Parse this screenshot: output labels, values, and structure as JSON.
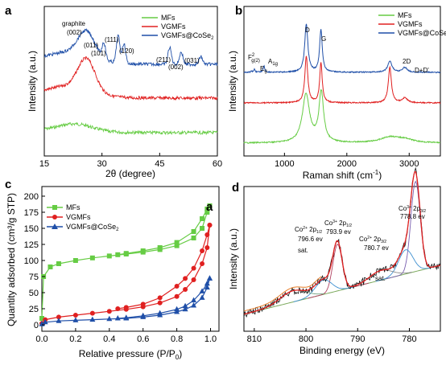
{
  "panels": {
    "a": {
      "label": "a",
      "xlabel": "2θ (degree)",
      "ylabel": "Intensity (a.u.)"
    },
    "b": {
      "label": "b",
      "xlabel": "Raman shift (cm",
      "xlabel_sup": "-1",
      "xlabel_end": ")",
      "ylabel": "Intensity (a.u.)"
    },
    "c": {
      "label": "c",
      "inner_label": "a",
      "xlabel": "Relative pressure (P/P",
      "xlabel_sub": "0",
      "xlabel_end": ")",
      "ylabel": "Quantity adsorbed (cm³/g STP)"
    },
    "d": {
      "label": "d",
      "xlabel": "Binding energy (eV)",
      "ylabel": "Intensity (a.u.)"
    }
  },
  "colors": {
    "MFs": "#66cc44",
    "VGMFs": "#e02020",
    "VGMFs@CoSe2": "#1f4fa8",
    "fit1": "#8a8a8a",
    "fit2": "#e87e2a"
  },
  "chart_data": [
    {
      "id": "a",
      "type": "line",
      "xlabel": "2θ (degree)",
      "ylabel": "Intensity (a.u.)",
      "xlim": [
        15,
        60
      ],
      "xticks": [
        15,
        30,
        45,
        60
      ],
      "legend": [
        "MFs",
        "VGMFs",
        "VGMFs@CoSe2"
      ],
      "legend_position": "top-right",
      "series": [
        {
          "name": "MFs",
          "peaks": [
            {
              "x": 23,
              "height": 0.45
            }
          ]
        },
        {
          "name": "VGMFs",
          "peaks": [
            {
              "x": 26,
              "height": 1.0
            }
          ]
        },
        {
          "name": "VGMFs@CoSe2",
          "peaks": [
            {
              "x": 26,
              "height": 0.8
            },
            {
              "x": 30.5,
              "height": 0.5
            },
            {
              "x": 34.2,
              "height": 0.9
            },
            {
              "x": 35.7,
              "height": 0.65
            },
            {
              "x": 47.6,
              "height": 0.55
            },
            {
              "x": 50.6,
              "height": 0.4
            },
            {
              "x": 55.7,
              "height": 0.25
            }
          ]
        }
      ],
      "annotations": [
        "graphite",
        "(002)",
        "(011)",
        "(101)",
        "(111)",
        "(120)",
        "(211)",
        "(002)",
        "(031)"
      ]
    },
    {
      "id": "b",
      "type": "line",
      "xlabel": "Raman shift (cm-1)",
      "ylabel": "Intensity (a.u.)",
      "xlim": [
        350,
        3500
      ],
      "xticks": [
        1000,
        2000,
        3000
      ],
      "legend": [
        "MFs",
        "VGMFs",
        "VGMFs@CoSe2"
      ],
      "legend_position": "top-right",
      "series": [
        {
          "name": "MFs",
          "peaks": [
            {
              "x": 1350,
              "label": "D"
            },
            {
              "x": 1585,
              "label": "G"
            },
            {
              "x": 2690,
              "label": "2D"
            }
          ]
        },
        {
          "name": "VGMFs",
          "peaks": [
            {
              "x": 1350
            },
            {
              "x": 1585
            },
            {
              "x": 2690
            },
            {
              "x": 2930
            }
          ]
        },
        {
          "name": "VGMFs@CoSe2",
          "peaks": [
            {
              "x": 520
            },
            {
              "x": 670
            },
            {
              "x": 1350
            },
            {
              "x": 1585
            },
            {
              "x": 2690
            },
            {
              "x": 2930
            }
          ]
        }
      ],
      "annotations": [
        "F²g(2)",
        "Eg",
        "A1g",
        "D",
        "G",
        "2D",
        "D+D'"
      ]
    },
    {
      "id": "c",
      "type": "line",
      "xlabel": "Relative pressure (P/P0)",
      "ylabel": "Quantity adsorbed (cm³/g STP)",
      "xlim": [
        0,
        1.05
      ],
      "ylim": [
        -10,
        215
      ],
      "xticks": [
        0.0,
        0.2,
        0.4,
        0.6,
        0.8,
        1.0
      ],
      "yticks": [
        0,
        25,
        50,
        75,
        100,
        125,
        150,
        175,
        200
      ],
      "legend": [
        "MFs",
        "VGMFs",
        "VGMFs@CoSe2"
      ],
      "legend_position": "top-left",
      "series": [
        {
          "name": "MFs",
          "adsorption": [
            [
              0.0,
              10
            ],
            [
              0.01,
              75
            ],
            [
              0.05,
              90
            ],
            [
              0.1,
              95
            ],
            [
              0.2,
              100
            ],
            [
              0.3,
              104
            ],
            [
              0.4,
              107
            ],
            [
              0.5,
              110
            ],
            [
              0.6,
              113
            ],
            [
              0.7,
              117
            ],
            [
              0.8,
              123
            ],
            [
              0.9,
              135
            ],
            [
              0.95,
              150
            ],
            [
              0.98,
              175
            ],
            [
              0.995,
              185
            ]
          ],
          "desorption": [
            [
              0.995,
              185
            ],
            [
              0.98,
              180
            ],
            [
              0.95,
              165
            ],
            [
              0.9,
              145
            ],
            [
              0.8,
              128
            ],
            [
              0.7,
              120
            ],
            [
              0.6,
              115
            ],
            [
              0.5,
              111
            ],
            [
              0.45,
              109
            ]
          ]
        },
        {
          "name": "VGMFs",
          "adsorption": [
            [
              0.0,
              2
            ],
            [
              0.02,
              8
            ],
            [
              0.1,
              12
            ],
            [
              0.2,
              15
            ],
            [
              0.3,
              18
            ],
            [
              0.4,
              21
            ],
            [
              0.5,
              24
            ],
            [
              0.6,
              28
            ],
            [
              0.7,
              34
            ],
            [
              0.8,
              44
            ],
            [
              0.85,
              55
            ],
            [
              0.9,
              70
            ],
            [
              0.95,
              95
            ],
            [
              0.98,
              120
            ],
            [
              0.995,
              155
            ]
          ],
          "desorption": [
            [
              0.995,
              155
            ],
            [
              0.98,
              140
            ],
            [
              0.95,
              115
            ],
            [
              0.9,
              88
            ],
            [
              0.85,
              72
            ],
            [
              0.8,
              60
            ],
            [
              0.7,
              42
            ],
            [
              0.6,
              32
            ],
            [
              0.5,
              27
            ],
            [
              0.45,
              25
            ]
          ]
        },
        {
          "name": "VGMFs@CoSe2",
          "adsorption": [
            [
              0.0,
              1
            ],
            [
              0.02,
              4
            ],
            [
              0.1,
              6
            ],
            [
              0.2,
              7
            ],
            [
              0.3,
              8
            ],
            [
              0.4,
              9
            ],
            [
              0.5,
              10
            ],
            [
              0.6,
              12
            ],
            [
              0.7,
              15
            ],
            [
              0.8,
              20
            ],
            [
              0.85,
              24
            ],
            [
              0.9,
              30
            ],
            [
              0.95,
              42
            ],
            [
              0.98,
              58
            ],
            [
              0.995,
              72
            ]
          ],
          "desorption": [
            [
              0.995,
              72
            ],
            [
              0.98,
              64
            ],
            [
              0.95,
              52
            ],
            [
              0.9,
              38
            ],
            [
              0.85,
              29
            ],
            [
              0.8,
              24
            ],
            [
              0.7,
              18
            ],
            [
              0.6,
              14
            ],
            [
              0.5,
              11
            ],
            [
              0.45,
              10
            ]
          ]
        }
      ]
    },
    {
      "id": "d",
      "type": "line",
      "xlabel": "Binding energy (eV)",
      "ylabel": "Intensity (a.u.)",
      "xlim": [
        812,
        774
      ],
      "xticks": [
        810,
        800,
        790,
        780
      ],
      "peaks": [
        {
          "label": "Co3+ 2p3/2 778.8 ev",
          "x": 778.8
        },
        {
          "label": "Co2+ 2p3/2 780.7 ev",
          "x": 780.7
        },
        {
          "label": "sat.",
          "x": 785.5
        },
        {
          "label": "Co3+ 2p1/2 793.9 ev",
          "x": 793.9
        },
        {
          "label": "Co2+ 2p1/2 796.6 ev",
          "x": 796.6
        },
        {
          "label": "sat.",
          "x": 802.5
        }
      ]
    }
  ],
  "text": {
    "a_graphite": "graphite",
    "a_002": "(002)",
    "a_011": "(011)",
    "a_101": "(101)",
    "a_111": "(111)",
    "a_120": "(120)",
    "a_211": "(211)",
    "a_002b": "(002)",
    "a_031": "(031)",
    "b_F": "F",
    "b_F_sup": "2",
    "b_F_sub": "g(2)",
    "b_E": "E",
    "b_E_sub": "g",
    "b_A": "A",
    "b_A_sub": "1g",
    "b_D": "D",
    "b_G": "G",
    "b_2D": "2D",
    "b_DD": "D+D'",
    "d_p1a": "Co",
    "d_p1b": "3+",
    "d_p1c": " 2p",
    "d_p1d": "3/2",
    "d_p1e": "778.8 ev",
    "d_p2a": "Co",
    "d_p2b": "2+",
    "d_p2c": " 2p",
    "d_p2d": "3/2",
    "d_p2e": "780.7 ev",
    "d_p3": "sat.",
    "d_p4a": "Co",
    "d_p4b": "3+",
    "d_p4c": " 2p",
    "d_p4d": "1/2",
    "d_p4e": "793.9 ev",
    "d_p5a": "Co",
    "d_p5b": "2+",
    "d_p5c": " 2p",
    "d_p5d": "1/2",
    "d_p5e": "796.6 ev",
    "d_p6": "sat."
  },
  "legend": {
    "mfs": "MFs",
    "vgmfs": "VGMFs",
    "cose": "VGMFs@CoSe",
    "cose_sub": "2"
  }
}
